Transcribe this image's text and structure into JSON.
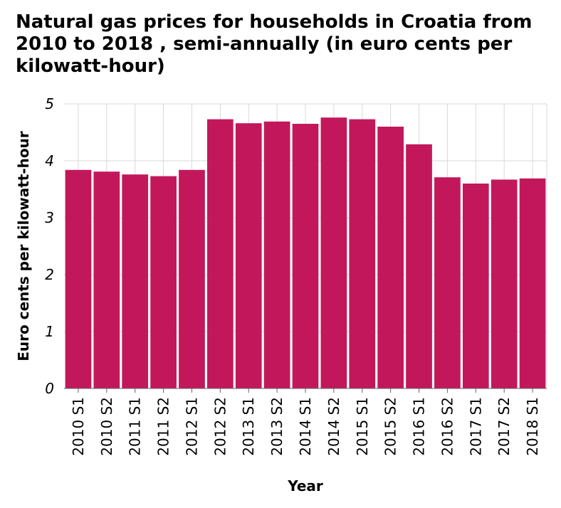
{
  "chart_data": {
    "type": "bar",
    "title": "Natural gas prices for households in Croatia from 2010 to 2018 , semi-annually (in euro cents per kilowatt-hour)",
    "xlabel": "Year",
    "ylabel": "Euro cents per kilowatt-hour",
    "ylim": [
      0,
      5
    ],
    "yticks": [
      "0",
      "1",
      "2",
      "3",
      "4",
      "5"
    ],
    "grid": true,
    "bar_color": "#c2185b",
    "categories": [
      "2010 S1",
      "2010 S2",
      "2011 S1",
      "2011 S2",
      "2012 S1",
      "2012 S2",
      "2013 S1",
      "2013 S2",
      "2014 S1",
      "2014 S2",
      "2015 S1",
      "2015 S2",
      "2016 S1",
      "2016 S2",
      "2017 S1",
      "2017 S2",
      "2018 S1"
    ],
    "values": [
      3.84,
      3.81,
      3.76,
      3.73,
      3.84,
      4.73,
      4.66,
      4.69,
      4.65,
      4.76,
      4.73,
      4.6,
      4.29,
      3.71,
      3.6,
      3.67,
      3.69
    ]
  }
}
